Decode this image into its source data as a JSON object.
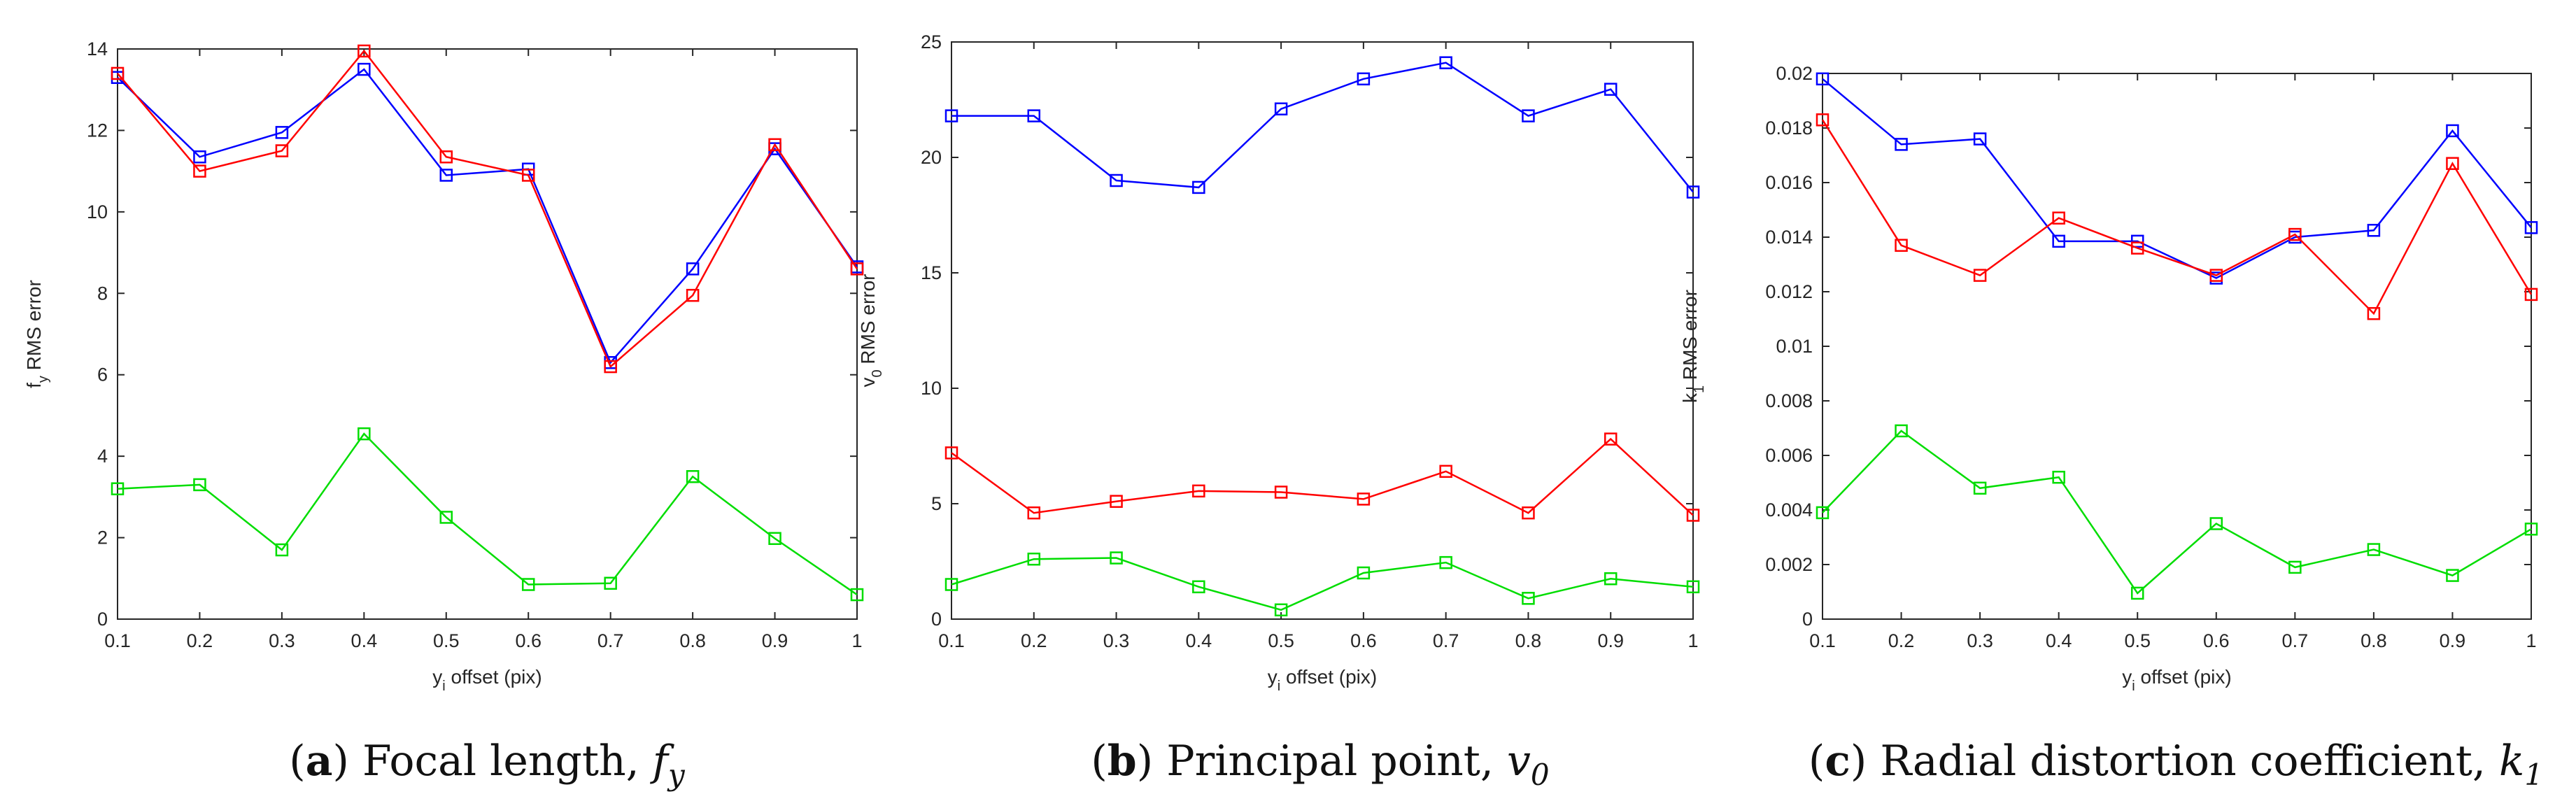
{
  "chart_data": [
    {
      "type": "line",
      "caption": {
        "letter": "a",
        "text": "Focal length,",
        "symbol": "f",
        "subscript": "y"
      },
      "xlabel": {
        "main": "y",
        "sub": "i",
        "rest": " offset (pix)"
      },
      "ylabel": {
        "main": "f",
        "sub": "y",
        "rest": " RMS error"
      },
      "xlim": [
        0.1,
        1
      ],
      "ylim": [
        0,
        14
      ],
      "xticks": [
        "0.1",
        "0.2",
        "0.3",
        "0.4",
        "0.5",
        "0.6",
        "0.7",
        "0.8",
        "0.9",
        "1"
      ],
      "yticks": [
        "0",
        "2",
        "4",
        "6",
        "8",
        "10",
        "12",
        "14"
      ],
      "x": [
        0.1,
        0.2,
        0.3,
        0.4,
        0.5,
        0.6,
        0.7,
        0.8,
        0.9,
        1.0
      ],
      "series": [
        {
          "name": "blue",
          "color": "#0000ff",
          "values": [
            13.3,
            11.35,
            11.95,
            13.5,
            10.9,
            11.05,
            6.3,
            8.6,
            11.55,
            8.65
          ]
        },
        {
          "name": "red",
          "color": "#ff0000",
          "values": [
            13.4,
            11.0,
            11.5,
            13.95,
            11.35,
            10.9,
            6.2,
            7.95,
            11.65,
            8.6
          ]
        },
        {
          "name": "green",
          "color": "#00dd00",
          "values": [
            3.2,
            3.3,
            1.7,
            4.55,
            2.5,
            0.85,
            0.88,
            3.5,
            1.98,
            0.6
          ]
        }
      ]
    },
    {
      "type": "line",
      "caption": {
        "letter": "b",
        "text": "Principal point,",
        "symbol": "v",
        "subscript": "0"
      },
      "xlabel": {
        "main": "y",
        "sub": "i",
        "rest": " offset (pix)"
      },
      "ylabel": {
        "main": "v",
        "sub": "0",
        "rest": " RMS error"
      },
      "xlim": [
        0.1,
        1
      ],
      "ylim": [
        0,
        25
      ],
      "xticks": [
        "0.1",
        "0.2",
        "0.3",
        "0.4",
        "0.5",
        "0.6",
        "0.7",
        "0.8",
        "0.9",
        "1"
      ],
      "yticks": [
        "0",
        "5",
        "10",
        "15",
        "20",
        "25"
      ],
      "x": [
        0.1,
        0.2,
        0.3,
        0.4,
        0.5,
        0.6,
        0.7,
        0.8,
        0.9,
        1.0
      ],
      "series": [
        {
          "name": "blue",
          "color": "#0000ff",
          "values": [
            21.8,
            21.8,
            19.0,
            18.7,
            22.1,
            23.4,
            24.1,
            21.8,
            22.95,
            18.5
          ]
        },
        {
          "name": "red",
          "color": "#ff0000",
          "values": [
            7.2,
            4.6,
            5.1,
            5.55,
            5.5,
            5.2,
            6.4,
            4.6,
            7.8,
            4.5
          ]
        },
        {
          "name": "green",
          "color": "#00dd00",
          "values": [
            1.5,
            2.6,
            2.65,
            1.4,
            0.4,
            2.0,
            2.45,
            0.9,
            1.75,
            1.4
          ]
        }
      ]
    },
    {
      "type": "line",
      "caption": {
        "letter": "c",
        "text": "Radial distortion coefficient,",
        "symbol": "k",
        "subscript": "1"
      },
      "xlabel": {
        "main": "y",
        "sub": "i",
        "rest": " offset (pix)"
      },
      "ylabel": {
        "main": "k",
        "sub": "1",
        "rest": " RMS error"
      },
      "xlim": [
        0.1,
        1
      ],
      "ylim": [
        0,
        0.02
      ],
      "xticks": [
        "0.1",
        "0.2",
        "0.3",
        "0.4",
        "0.5",
        "0.6",
        "0.7",
        "0.8",
        "0.9",
        "1"
      ],
      "yticks": [
        "0",
        "0.002",
        "0.004",
        "0.006",
        "0.008",
        "0.01",
        "0.012",
        "0.014",
        "0.016",
        "0.018",
        "0.02"
      ],
      "x": [
        0.1,
        0.2,
        0.3,
        0.4,
        0.5,
        0.6,
        0.7,
        0.8,
        0.9,
        1.0
      ],
      "series": [
        {
          "name": "blue",
          "color": "#0000ff",
          "values": [
            0.0198,
            0.0174,
            0.0176,
            0.01385,
            0.01385,
            0.0125,
            0.014,
            0.01425,
            0.0179,
            0.01435
          ]
        },
        {
          "name": "red",
          "color": "#ff0000",
          "values": [
            0.0183,
            0.0137,
            0.0126,
            0.0147,
            0.0136,
            0.0126,
            0.0141,
            0.0112,
            0.0167,
            0.0119
          ]
        },
        {
          "name": "green",
          "color": "#00dd00",
          "values": [
            0.0039,
            0.0069,
            0.0048,
            0.0052,
            0.00095,
            0.0035,
            0.0019,
            0.00255,
            0.0016,
            0.0033
          ]
        }
      ]
    }
  ]
}
